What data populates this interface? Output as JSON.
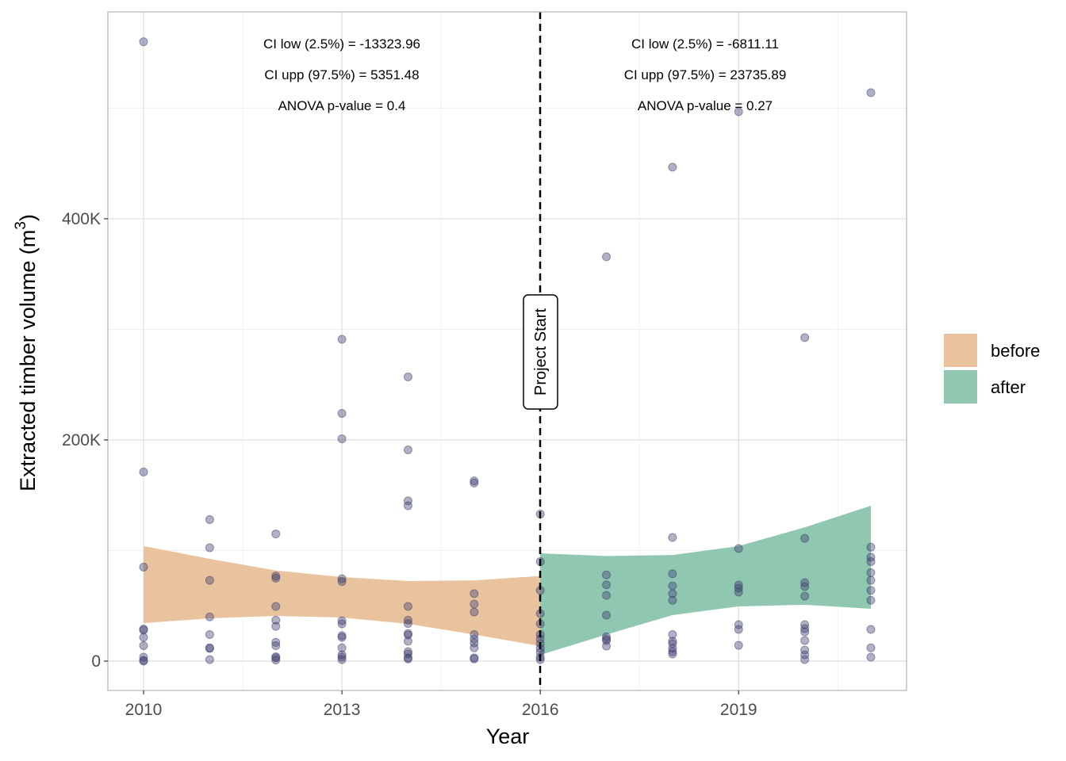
{
  "chart_data": {
    "type": "scatter",
    "xlabel": "Year",
    "ylabel": "Extracted timber volume (m",
    "ylabel_sup": "3",
    "ylabel_close": ")",
    "xlim": [
      2009.46,
      2021.54
    ],
    "ylim": [
      -26.5,
      587
    ],
    "x_ticks": [
      2010,
      2013,
      2016,
      2019
    ],
    "x_tick_labels": [
      "2010",
      "2013",
      "2016",
      "2019"
    ],
    "y_ticks": [
      0,
      200,
      400
    ],
    "y_tick_labels": [
      "0",
      "200K",
      "400K"
    ],
    "y_unit": "thousand m3",
    "grid": true,
    "legend": {
      "position": "right",
      "entries": [
        {
          "label": "before",
          "color": "#e9c39e"
        },
        {
          "label": "after",
          "color": "#8fc7b0"
        }
      ]
    },
    "vline": {
      "x": 2016,
      "label": "Project Start"
    },
    "annotations": {
      "before": [
        "CI low (2.5%) =  -13323.96",
        "CI upp (97.5%) =  5351.48",
        "ANOVA p-value =  0.4"
      ],
      "after": [
        "CI low (2.5%) =  -6811.11",
        "CI upp (97.5%) =  23735.89",
        "ANOVA p-value =  0.27"
      ]
    },
    "ribbons": [
      {
        "name": "before",
        "x": [
          2010,
          2011,
          2012,
          2013,
          2014,
          2015,
          2016
        ],
        "upper": [
          104,
          92.5,
          82,
          76,
          72.4,
          73,
          77
        ],
        "lower": [
          34.4,
          38.7,
          40.9,
          39.4,
          33.7,
          24,
          13.6
        ]
      },
      {
        "name": "after",
        "x": [
          2016,
          2017,
          2018,
          2019,
          2020,
          2021
        ],
        "upper": [
          97.5,
          95,
          96,
          104,
          121,
          140.5
        ],
        "lower": [
          5.7,
          24,
          41.6,
          49.5,
          51,
          47.3
        ]
      }
    ],
    "points": {
      "2010": [
        560,
        171,
        85,
        29,
        28,
        21.5,
        14,
        3.6,
        0.7,
        0
      ],
      "2011": [
        128,
        102.5,
        73,
        40,
        24,
        12,
        11.5,
        1.4
      ],
      "2012": [
        115,
        77,
        75,
        49.5,
        37,
        31.5,
        17,
        14,
        4,
        3,
        1
      ],
      "2013": [
        291,
        224,
        201,
        74.5,
        72,
        36.5,
        33.7,
        23,
        21.5,
        12,
        5.7,
        3.6,
        1.4
      ],
      "2014": [
        257,
        191,
        145,
        140.5,
        49.5,
        37,
        34,
        25,
        23.7,
        18,
        8.6,
        6.5,
        3,
        2
      ],
      "2015": [
        163,
        161,
        61,
        51.6,
        44.4,
        24,
        20,
        16.5,
        12,
        3,
        2
      ],
      "2016": [
        133,
        90,
        64,
        43,
        33.7,
        24,
        20,
        15.8,
        11.5,
        8,
        3.6,
        1.4
      ],
      "2017": [
        365.6,
        78,
        69,
        59.5,
        41.6,
        22,
        20,
        18.6,
        13.6
      ],
      "2018": [
        446.6,
        111.8,
        79,
        68,
        61,
        55,
        24,
        18,
        15.8,
        11.5,
        8.6,
        6.5
      ],
      "2019": [
        496.8,
        101.8,
        68.8,
        66,
        62.4,
        33,
        28.7,
        14.3
      ],
      "2020": [
        292.5,
        111,
        71,
        67.4,
        58.8,
        33,
        29.4,
        26.5,
        18.6,
        10,
        5.7,
        1.4
      ],
      "2021": [
        514,
        103,
        94,
        90,
        80,
        73,
        64,
        55,
        28.7,
        12,
        3.6
      ]
    }
  }
}
